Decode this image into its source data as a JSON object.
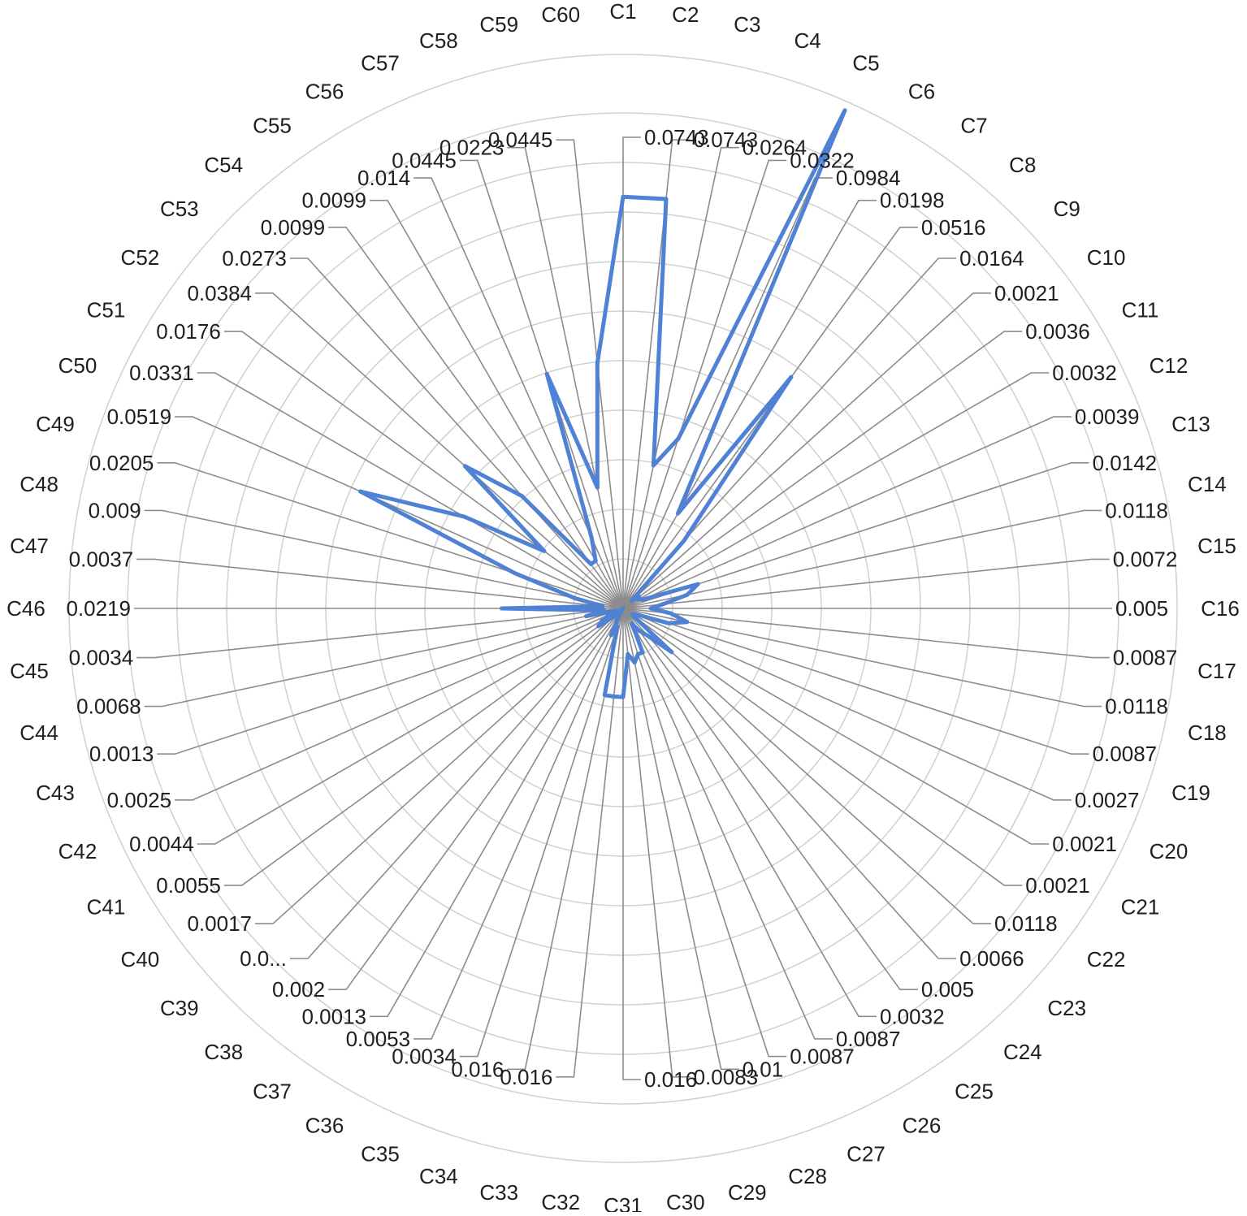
{
  "chart_data": {
    "type": "radar",
    "categories": [
      "C1",
      "C2",
      "C3",
      "C4",
      "C5",
      "C6",
      "C7",
      "C8",
      "C9",
      "C10",
      "C11",
      "C12",
      "C13",
      "C14",
      "C15",
      "C16",
      "C17",
      "C18",
      "C19",
      "C20",
      "C21",
      "C22",
      "C23",
      "C24",
      "C25",
      "C26",
      "C27",
      "C28",
      "C29",
      "C30",
      "C31",
      "C32",
      "C33",
      "C34",
      "C35",
      "C36",
      "C37",
      "C38",
      "C39",
      "C40",
      "C41",
      "C42",
      "C43",
      "C44",
      "C45",
      "C46",
      "C47",
      "C48",
      "C49",
      "C50",
      "C51",
      "C52",
      "C53",
      "C54",
      "C55",
      "C56",
      "C57",
      "C58",
      "C59",
      "C60"
    ],
    "values": [
      0.0743,
      0.0743,
      0.0264,
      0.0322,
      0.0984,
      0.0198,
      0.0516,
      0.0164,
      0.0021,
      0.0036,
      0.0032,
      0.0039,
      0.0142,
      0.0118,
      0.0072,
      0.005,
      0.0087,
      0.0118,
      0.0087,
      0.0027,
      0.0021,
      0.0021,
      0.0118,
      0.0066,
      0.005,
      0.0032,
      0.0087,
      0.0087,
      0.01,
      0.0083,
      0.016,
      0.016,
      0.016,
      0.0034,
      0.0053,
      0.0013,
      0.002,
      0.0,
      0.0017,
      0.0055,
      0.0044,
      0.0025,
      0.0013,
      0.0068,
      0.0034,
      0.0219,
      0.0037,
      0.009,
      0.0205,
      0.0519,
      0.0331,
      0.0176,
      0.0384,
      0.0273,
      0.0099,
      0.0099,
      0.014,
      0.0445,
      0.0223,
      0.0445
    ],
    "value_labels": [
      "0.0743",
      "0.0743",
      "0.0264",
      "0.0322",
      "0.0984",
      "0.0198",
      "0.0516",
      "0.0164",
      "0.0021",
      "0.0036",
      "0.0032",
      "0.0039",
      "0.0142",
      "0.0118",
      "0.0072",
      "0.005",
      "0.0087",
      "0.0118",
      "0.0087",
      "0.0027",
      "0.0021",
      "0.0021",
      "0.0118",
      "0.0066",
      "0.005",
      "0.0032",
      "0.0087",
      "0.0087",
      "0.01",
      "0.0083",
      "0.016",
      "0.016",
      "0.016",
      "0.0034",
      "0.0053",
      "0.0013",
      "0.002",
      "0.0...",
      "0.0017",
      "0.0055",
      "0.0044",
      "0.0025",
      "0.0013",
      "0.0068",
      "0.0034",
      "0.0219",
      "0.0037",
      "0.009",
      "0.0205",
      "0.0519",
      "0.0331",
      "0.0176",
      "0.0384",
      "0.0273",
      "0.0099",
      "0.0099",
      "0.014",
      "0.0445",
      "0.0223",
      "0.0445"
    ],
    "rlim": [
      0,
      0.1
    ],
    "ring_count": 10,
    "grid": true,
    "legend": "none",
    "series_color": "#4f81d4",
    "spoke_color": "#8c8c8c",
    "ring_color": "#d0d0d0"
  }
}
